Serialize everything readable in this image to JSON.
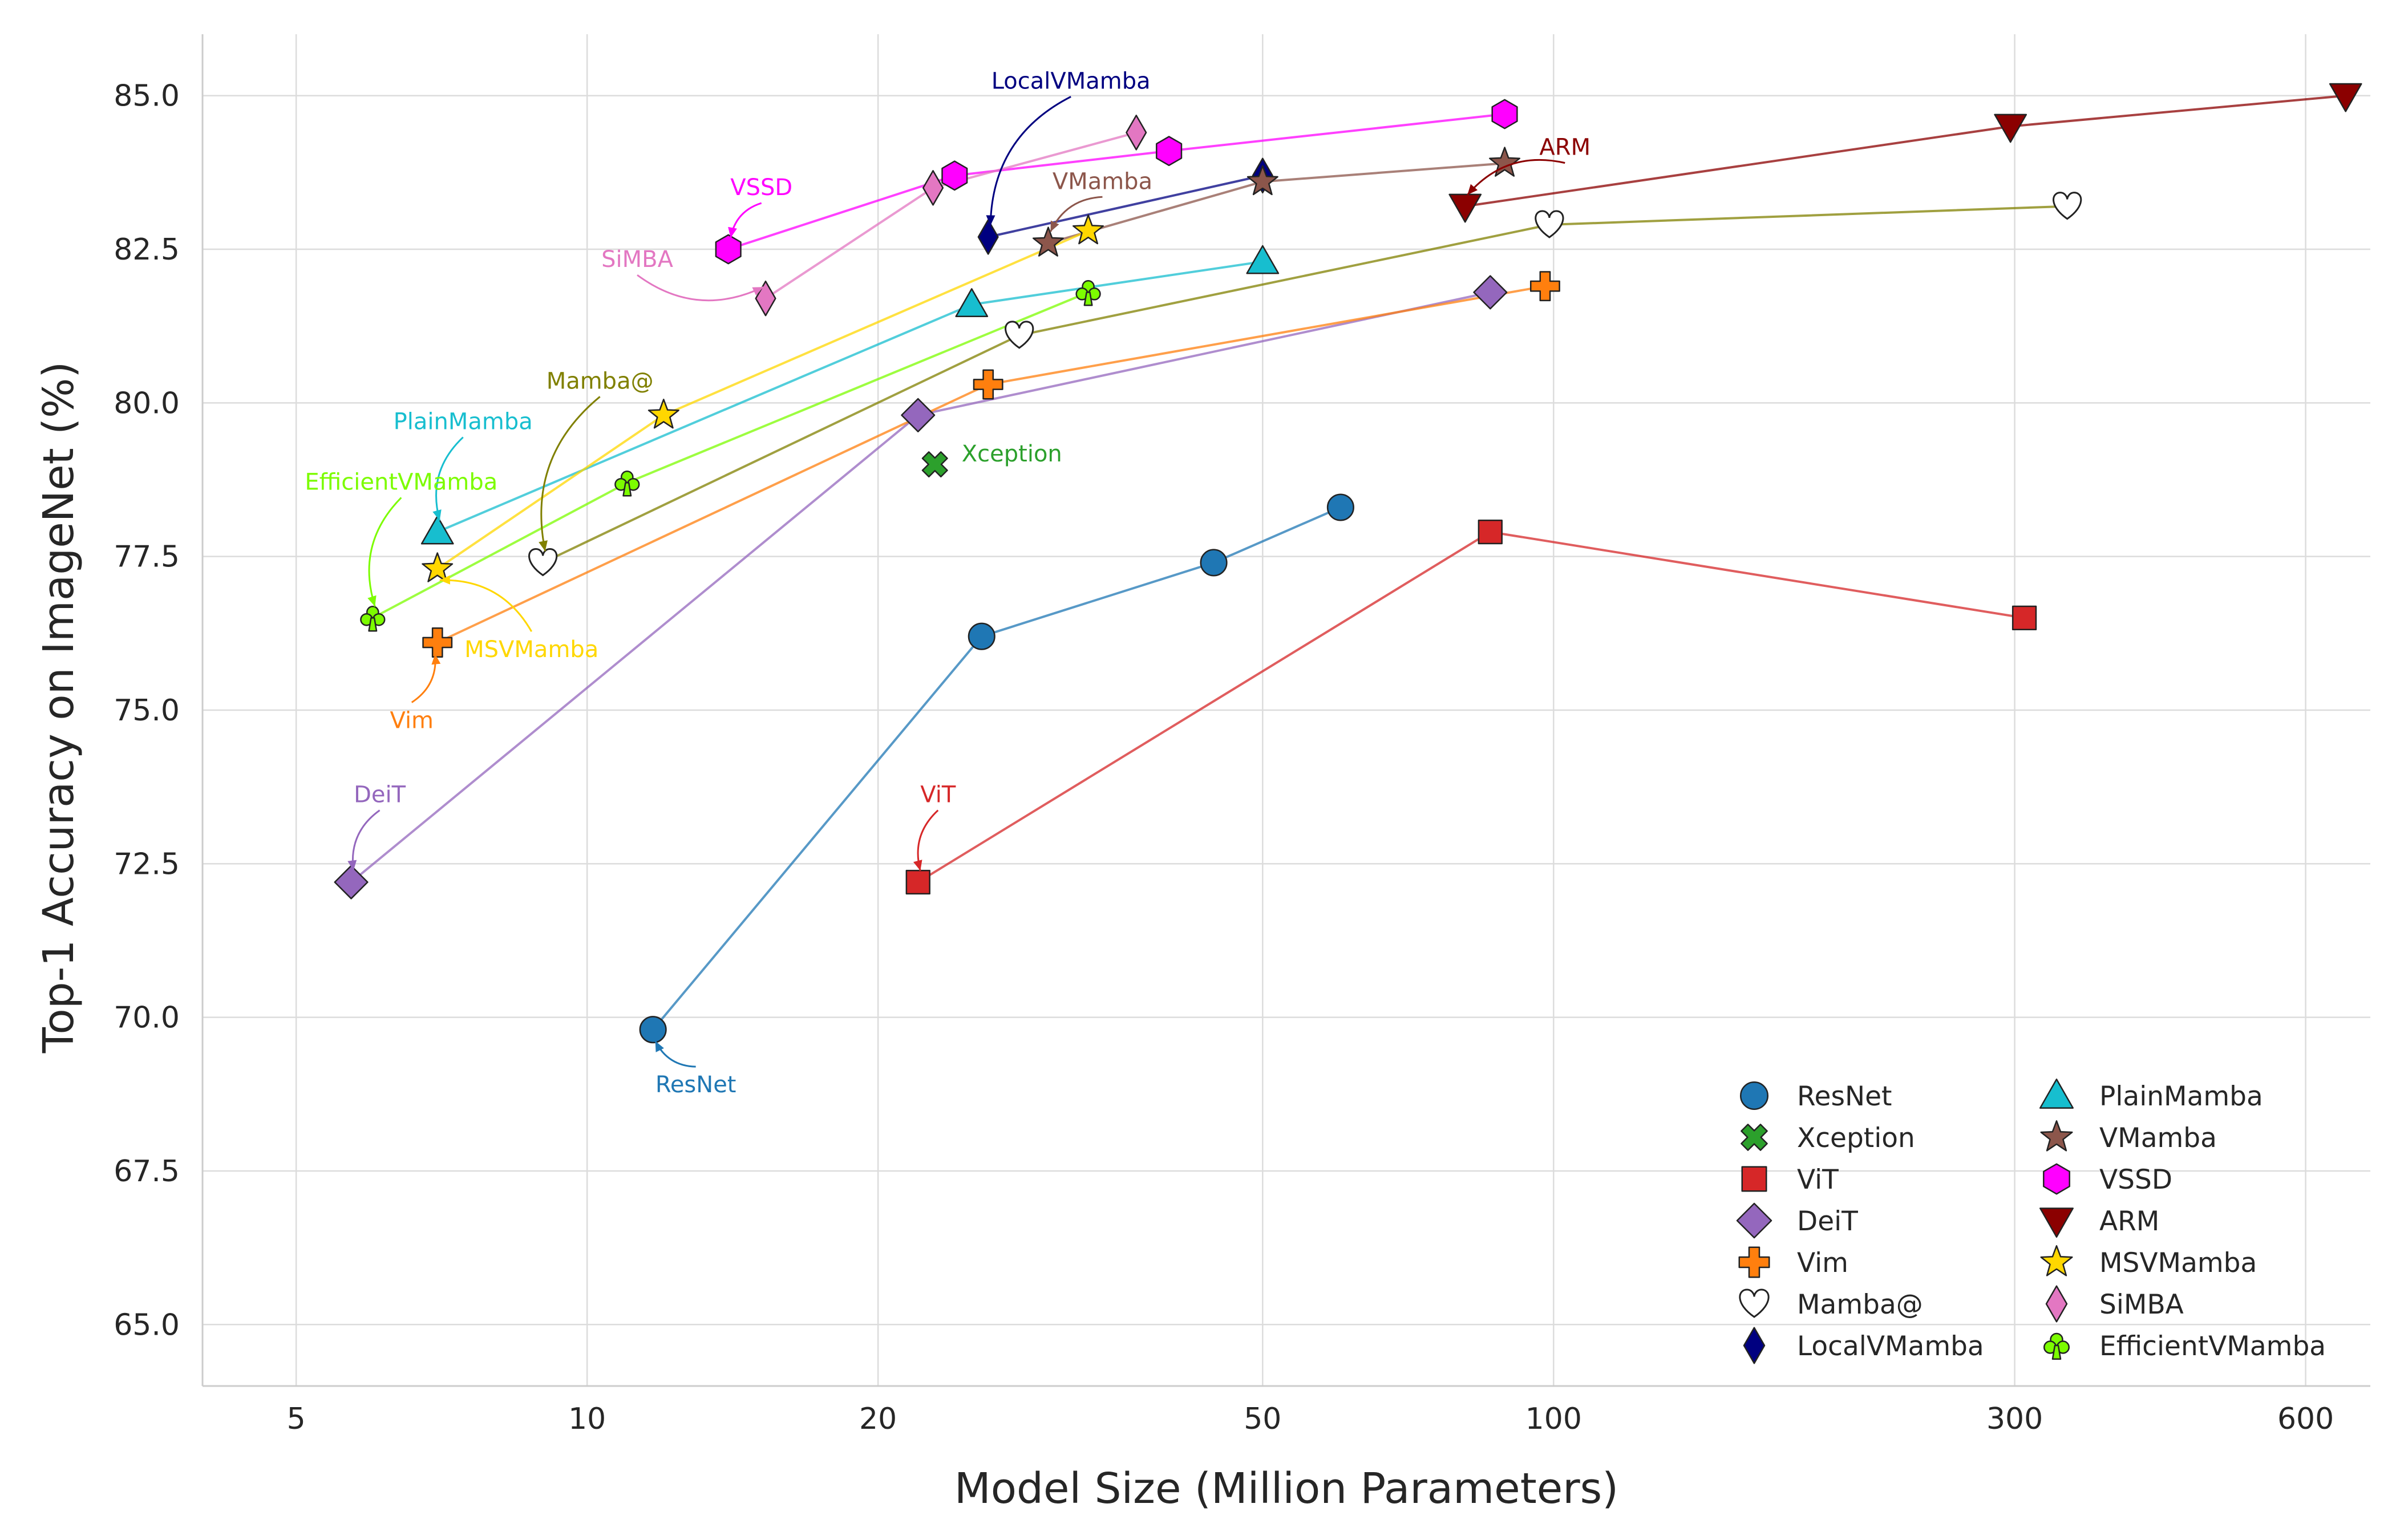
{
  "chart_data": {
    "type": "line",
    "title": "",
    "xlabel": "Model Size (Million Parameters)",
    "ylabel": "Top-1 Accuracy on ImageNet (%)",
    "x_scale": "log",
    "xlim": [
      4,
      700
    ],
    "ylim": [
      64,
      86
    ],
    "x_ticks": [
      5,
      10,
      20,
      50,
      100,
      300,
      600
    ],
    "x_tick_labels": [
      "5",
      "10",
      "20",
      "50",
      "100",
      "300",
      "600"
    ],
    "y_ticks": [
      65,
      67.5,
      70,
      72.5,
      75,
      77.5,
      80,
      82.5,
      85
    ],
    "y_tick_labels": [
      "65.0",
      "67.5",
      "70.0",
      "72.5",
      "75.0",
      "77.5",
      "80.0",
      "82.5",
      "85.0"
    ],
    "grid": true,
    "legend_position": "bottom-right",
    "series": [
      {
        "name": "ResNet",
        "color": "#1f77b4",
        "marker": "circle",
        "x": [
          11.7,
          25.6,
          44.5,
          60.2
        ],
        "y": [
          69.8,
          76.2,
          77.4,
          78.3
        ],
        "annotation": {
          "text": "ResNet",
          "point": 0
        }
      },
      {
        "name": "Xception",
        "color": "#2ca02c",
        "marker": "x",
        "x": [
          22.9
        ],
        "y": [
          79.0
        ],
        "annotation": {
          "text": "Xception",
          "point": 0
        }
      },
      {
        "name": "ViT",
        "color": "#d62728",
        "marker": "square",
        "x": [
          22,
          86,
          307
        ],
        "y": [
          72.2,
          77.9,
          76.5
        ],
        "annotation": {
          "text": "ViT",
          "point": 0
        }
      },
      {
        "name": "DeiT",
        "color": "#9467bd",
        "marker": "diamond",
        "x": [
          5.7,
          22,
          86
        ],
        "y": [
          72.2,
          79.8,
          81.8
        ],
        "annotation": {
          "text": "DeiT",
          "point": 0
        }
      },
      {
        "name": "Vim",
        "color": "#ff7f0e",
        "marker": "plus",
        "x": [
          7,
          26,
          98
        ],
        "y": [
          76.1,
          80.3,
          81.9
        ],
        "annotation": {
          "text": "Vim",
          "point": 0
        }
      },
      {
        "name": "Mamba@",
        "color": "#808000",
        "marker": "heart",
        "x": [
          9,
          28,
          99,
          340
        ],
        "y": [
          77.4,
          81.1,
          82.9,
          83.2
        ],
        "annotation": {
          "text": "Mamba@",
          "point": 0
        }
      },
      {
        "name": "LocalVMamba",
        "color": "#000080",
        "marker": "thin-diamond",
        "x": [
          26,
          50
        ],
        "y": [
          82.7,
          83.7
        ],
        "annotation": {
          "text": "LocalVMamba",
          "point": 0
        }
      },
      {
        "name": "PlainMamba",
        "color": "#17becf",
        "marker": "triangle-up",
        "x": [
          7,
          25,
          50
        ],
        "y": [
          77.9,
          81.6,
          82.3
        ],
        "annotation": {
          "text": "PlainMamba",
          "point": 0
        }
      },
      {
        "name": "VMamba",
        "color": "#8c564b",
        "marker": "star",
        "x": [
          30,
          50,
          89
        ],
        "y": [
          82.6,
          83.6,
          83.9
        ],
        "annotation": {
          "text": "VMamba",
          "point": 0
        }
      },
      {
        "name": "VSSD",
        "color": "#ff00ff",
        "marker": "hexagon",
        "x": [
          14,
          24,
          40,
          89
        ],
        "y": [
          82.5,
          83.7,
          84.1,
          84.7
        ],
        "annotation": {
          "text": "VSSD",
          "point": 0
        }
      },
      {
        "name": "ARM",
        "color": "#8b0000",
        "marker": "triangle-down",
        "x": [
          81,
          297,
          660
        ],
        "y": [
          83.2,
          84.5,
          85.0
        ],
        "annotation": {
          "text": "ARM",
          "point": 0
        }
      },
      {
        "name": "MSVMamba",
        "color": "#ffd700",
        "marker": "star",
        "x": [
          7,
          12,
          33
        ],
        "y": [
          77.3,
          79.8,
          82.8
        ],
        "annotation": {
          "text": "MSVMamba",
          "point": 0
        }
      },
      {
        "name": "SiMBA",
        "color": "#e377c2",
        "marker": "thin-diamond",
        "x": [
          15.3,
          22.8,
          37
        ],
        "y": [
          81.7,
          83.5,
          84.4
        ],
        "annotation": {
          "text": "SiMBA",
          "point": 0
        }
      },
      {
        "name": "EfficientVMamba",
        "color": "#7cfc00",
        "marker": "club",
        "x": [
          6,
          11,
          33
        ],
        "y": [
          76.5,
          78.7,
          81.8
        ],
        "annotation": {
          "text": "EfficientVMamba",
          "point": 0
        }
      }
    ]
  }
}
